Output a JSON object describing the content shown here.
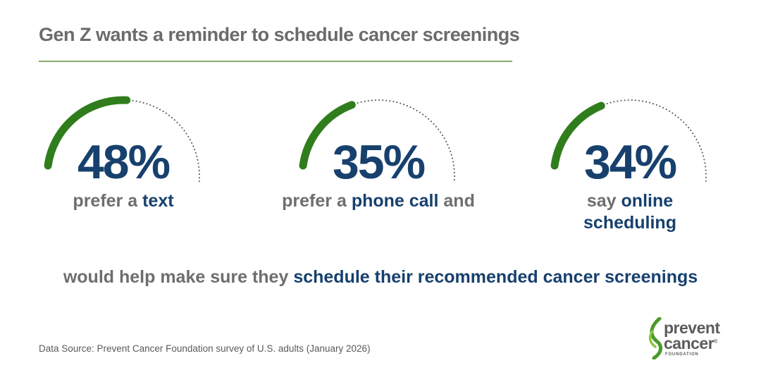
{
  "title": "Gen Z wants a reminder to schedule cancer screenings",
  "chart_data": {
    "type": "gauge",
    "series": [
      {
        "value": 48,
        "label": "48%",
        "caption_plain": "prefer a ",
        "caption_emph": "text",
        "caption_after": ""
      },
      {
        "value": 35,
        "label": "35%",
        "caption_plain": "prefer a ",
        "caption_emph": "phone call",
        "caption_after": " and"
      },
      {
        "value": 34,
        "label": "34%",
        "caption_plain": "say ",
        "caption_emph": "online",
        "caption_line2": "scheduling"
      }
    ],
    "ylim": [
      0,
      100
    ]
  },
  "bottom": {
    "plain": "would help make sure they ",
    "emph": "schedule their recommended cancer screenings"
  },
  "source": "Data Source: Prevent Cancer Foundation survey of U.S. adults (January 2026)",
  "logo": {
    "line1": "prevent",
    "line2": "cancer",
    "sub": "FOUNDATION",
    "mark": "®"
  },
  "colors": {
    "arc": "#2f7d1c",
    "dots": "#555555",
    "navy": "#17406d",
    "gray": "#6e6e6e",
    "rule": "#8aa86b"
  }
}
